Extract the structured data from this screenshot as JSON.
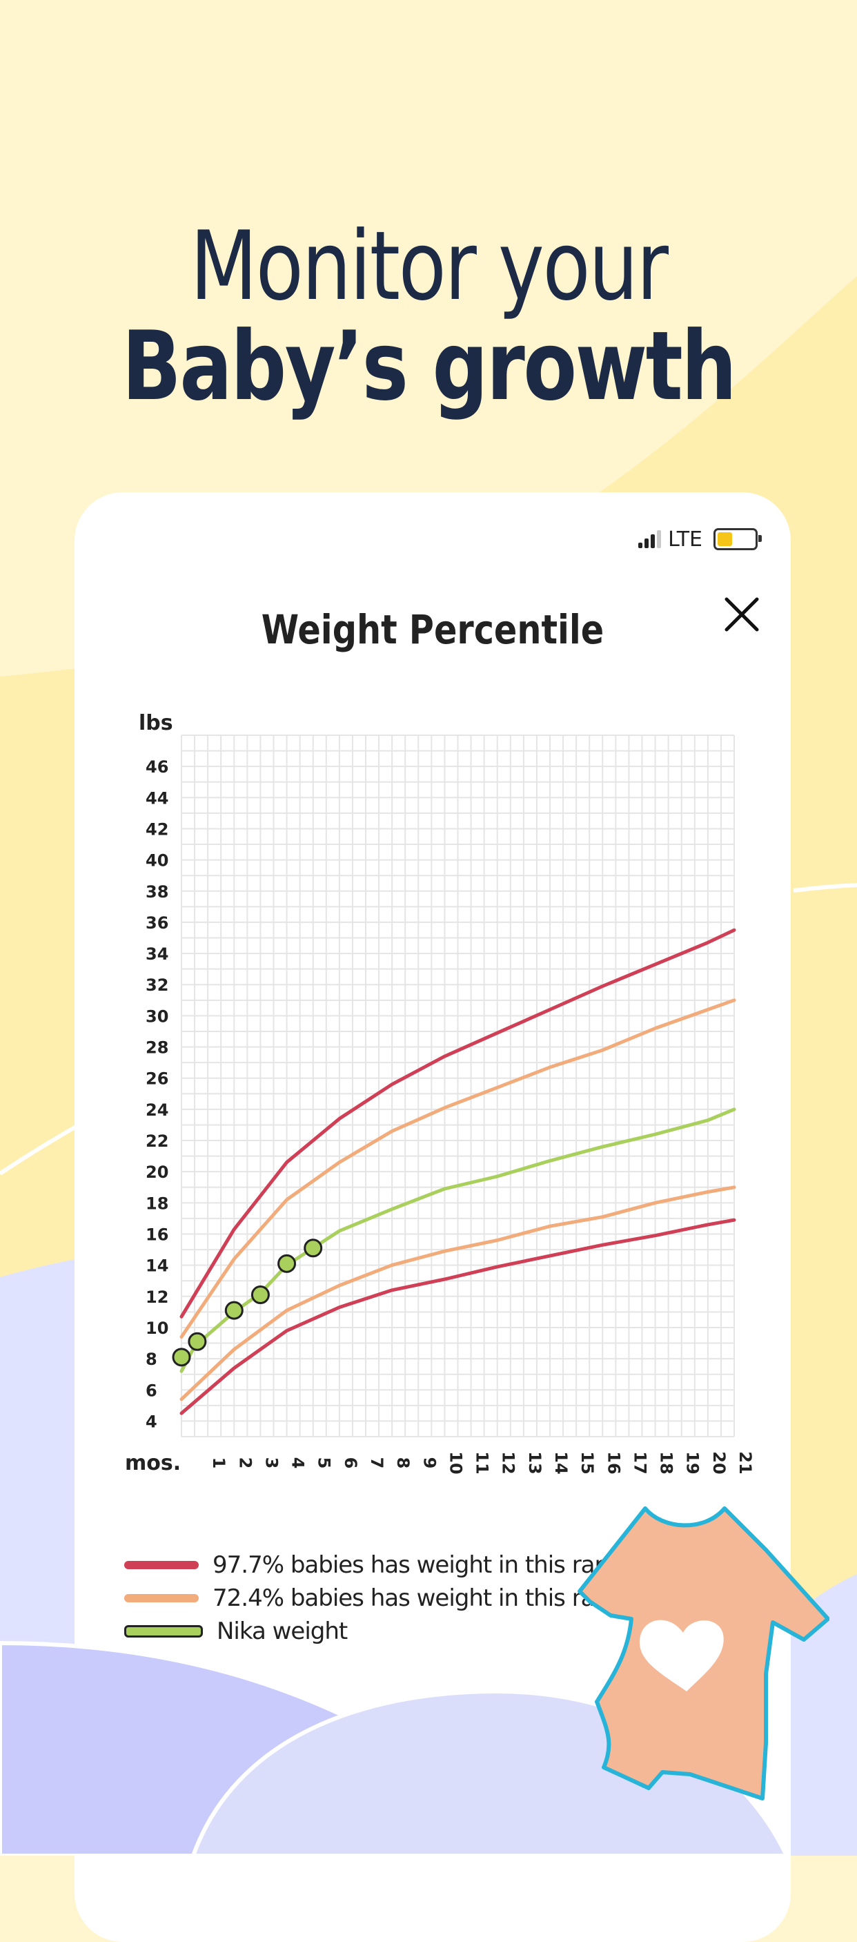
{
  "headline": {
    "line1": "Monitor your",
    "line2": "Baby’s growth"
  },
  "status_bar": {
    "network": "LTE",
    "battery_level": 0.4
  },
  "colors": {
    "background": "#fff6d0",
    "heading": "#1c2a45",
    "p97": "#cf3f56",
    "p72": "#f2ab7a",
    "baby": "#a9cf5c",
    "marker": "#a9cf5c",
    "onesie": "#f4b896",
    "onesie_outline": "#27b4d8"
  },
  "icons": {
    "close": "close-icon",
    "onesie": "baby-onesie-heart-icon"
  },
  "chart_data": {
    "type": "line",
    "title": "Weight Percentile",
    "ylabel": "lbs",
    "xlabel": "mos.",
    "ylim": [
      3,
      48
    ],
    "xlim": [
      0,
      21
    ],
    "y_ticks": [
      4,
      6,
      8,
      10,
      12,
      14,
      16,
      18,
      20,
      22,
      24,
      26,
      28,
      30,
      32,
      34,
      36,
      38,
      40,
      42,
      44,
      46
    ],
    "x_ticks": [
      "1",
      "2",
      "3",
      "4",
      "5",
      "6",
      "7",
      "8",
      "9",
      "10",
      "11",
      "12",
      "13",
      "14",
      "15",
      "16",
      "17",
      "18",
      "19",
      "20",
      "21"
    ],
    "grid": true,
    "series": [
      {
        "key": "p97_high",
        "legend": "p97",
        "color": "#cf3f56",
        "points": [
          [
            0,
            10.7
          ],
          [
            2,
            16.3
          ],
          [
            4,
            20.6
          ],
          [
            6,
            23.4
          ],
          [
            8,
            25.6
          ],
          [
            10,
            27.4
          ],
          [
            12,
            28.9
          ],
          [
            14,
            30.4
          ],
          [
            16,
            31.9
          ],
          [
            18,
            33.3
          ],
          [
            20,
            34.7
          ],
          [
            21,
            35.5
          ]
        ]
      },
      {
        "key": "p72_high",
        "legend": "p72",
        "color": "#f2ab7a",
        "points": [
          [
            0,
            9.4
          ],
          [
            2,
            14.4
          ],
          [
            4,
            18.2
          ],
          [
            6,
            20.6
          ],
          [
            8,
            22.6
          ],
          [
            10,
            24.1
          ],
          [
            12,
            25.4
          ],
          [
            14,
            26.7
          ],
          [
            16,
            27.8
          ],
          [
            18,
            29.2
          ],
          [
            20,
            30.4
          ],
          [
            21,
            31.0
          ]
        ]
      },
      {
        "key": "baby_curve",
        "legend": "baby",
        "color": "#a9cf5c",
        "points": [
          [
            0,
            7.2
          ],
          [
            0.5,
            8.8
          ],
          [
            2,
            11.0
          ],
          [
            3,
            12.2
          ],
          [
            4,
            14.0
          ],
          [
            5,
            15.1
          ],
          [
            6,
            16.2
          ],
          [
            8,
            17.6
          ],
          [
            10,
            18.9
          ],
          [
            12,
            19.7
          ],
          [
            14,
            20.7
          ],
          [
            16,
            21.6
          ],
          [
            18,
            22.4
          ],
          [
            20,
            23.3
          ],
          [
            21,
            24.0
          ]
        ]
      },
      {
        "key": "p72_low",
        "legend": "p72",
        "color": "#f2ab7a",
        "points": [
          [
            0,
            5.4
          ],
          [
            2,
            8.6
          ],
          [
            4,
            11.1
          ],
          [
            6,
            12.7
          ],
          [
            8,
            14.0
          ],
          [
            10,
            14.9
          ],
          [
            12,
            15.6
          ],
          [
            14,
            16.5
          ],
          [
            16,
            17.1
          ],
          [
            18,
            18.0
          ],
          [
            20,
            18.7
          ],
          [
            21,
            19.0
          ]
        ]
      },
      {
        "key": "p97_low",
        "legend": "p97",
        "color": "#cf3f56",
        "points": [
          [
            0,
            4.5
          ],
          [
            2,
            7.4
          ],
          [
            4,
            9.8
          ],
          [
            6,
            11.3
          ],
          [
            8,
            12.4
          ],
          [
            10,
            13.1
          ],
          [
            12,
            13.9
          ],
          [
            14,
            14.6
          ],
          [
            16,
            15.3
          ],
          [
            18,
            15.9
          ],
          [
            20,
            16.6
          ],
          [
            21,
            16.9
          ]
        ]
      }
    ],
    "measurements": [
      [
        0,
        8.1
      ],
      [
        0.6,
        9.1
      ],
      [
        2,
        11.1
      ],
      [
        3,
        12.1
      ],
      [
        4,
        14.1
      ],
      [
        5,
        15.1
      ]
    ],
    "legend": [
      {
        "key": "p97",
        "label": "97.7% babies has weight in this range",
        "color": "#cf3f56"
      },
      {
        "key": "p72",
        "label": "72.4% babies has weight in this range",
        "color": "#f2ab7a"
      },
      {
        "key": "baby",
        "label": "Nika weight",
        "color": "#a9cf5c",
        "outlined": true
      }
    ]
  }
}
